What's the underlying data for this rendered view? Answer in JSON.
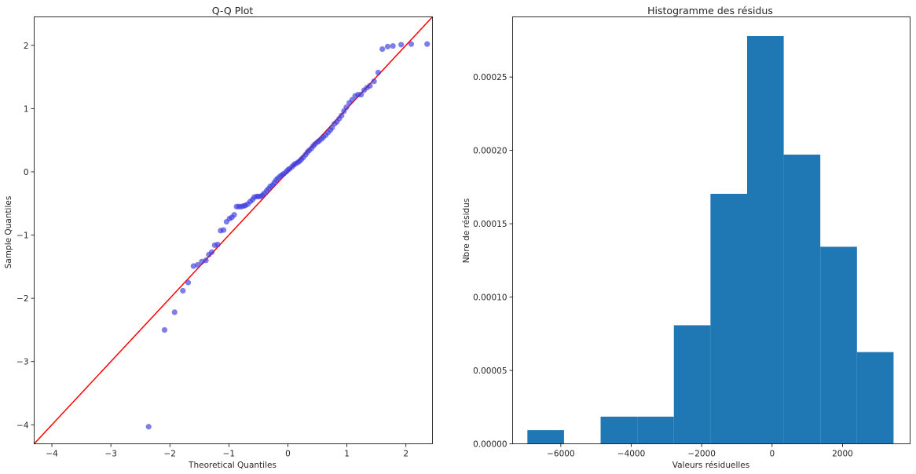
{
  "chart_data": [
    {
      "type": "scatter",
      "title": "Q-Q Plot",
      "xlabel": "Theoretical Quantiles",
      "ylabel": "Sample Quantiles",
      "xlim": [
        -4.3,
        2.45
      ],
      "ylim": [
        -4.3,
        2.45
      ],
      "xticks": [
        -4,
        -3,
        -2,
        -1,
        0,
        1,
        2
      ],
      "yticks": [
        -4,
        -3,
        -2,
        -1,
        0,
        1,
        2
      ],
      "grid": false,
      "reference_line": {
        "x": [
          -4.3,
          2.45
        ],
        "y": [
          -4.3,
          2.45
        ],
        "color": "#ff0000"
      },
      "point_color": "#3939e0",
      "series": [
        {
          "x": [
            -2.36,
            -2.09,
            -1.92,
            -1.78,
            -1.69,
            -1.6,
            -1.53,
            -1.46,
            -1.39,
            -1.34,
            -1.29,
            -1.24,
            -1.19,
            -1.14,
            -1.09,
            -1.04,
            -0.99,
            -0.95,
            -0.91,
            -0.87,
            -0.83,
            -0.79,
            -0.75,
            -0.72,
            -0.68,
            -0.64,
            -0.6,
            -0.57,
            -0.53,
            -0.5,
            -0.46,
            -0.43,
            -0.4,
            -0.36,
            -0.33,
            -0.3,
            -0.26,
            -0.23,
            -0.2,
            -0.17,
            -0.13,
            -0.1,
            -0.07,
            -0.03,
            0.0,
            0.03,
            0.07,
            0.1,
            0.13,
            0.17,
            0.2,
            0.23,
            0.26,
            0.3,
            0.33,
            0.36,
            0.4,
            0.43,
            0.46,
            0.5,
            0.53,
            0.57,
            0.6,
            0.64,
            0.68,
            0.72,
            0.75,
            0.79,
            0.83,
            0.87,
            0.91,
            0.95,
            0.99,
            1.04,
            1.09,
            1.14,
            1.19,
            1.24,
            1.29,
            1.34,
            1.39,
            1.46,
            1.53,
            1.6,
            1.69,
            1.78,
            1.92,
            2.09,
            2.36
          ],
          "y": [
            -4.03,
            -2.5,
            -2.22,
            -1.88,
            -1.75,
            -1.49,
            -1.47,
            -1.42,
            -1.4,
            -1.31,
            -1.27,
            -1.16,
            -1.15,
            -0.93,
            -0.92,
            -0.79,
            -0.74,
            -0.72,
            -0.68,
            -0.55,
            -0.55,
            -0.55,
            -0.54,
            -0.53,
            -0.51,
            -0.47,
            -0.44,
            -0.4,
            -0.39,
            -0.39,
            -0.39,
            -0.37,
            -0.34,
            -0.3,
            -0.27,
            -0.23,
            -0.21,
            -0.17,
            -0.13,
            -0.1,
            -0.07,
            -0.05,
            -0.03,
            0.0,
            0.03,
            0.05,
            0.08,
            0.11,
            0.13,
            0.15,
            0.17,
            0.2,
            0.23,
            0.27,
            0.31,
            0.34,
            0.37,
            0.41,
            0.44,
            0.47,
            0.49,
            0.52,
            0.55,
            0.58,
            0.62,
            0.66,
            0.7,
            0.76,
            0.79,
            0.84,
            0.89,
            0.96,
            1.02,
            1.09,
            1.14,
            1.2,
            1.22,
            1.22,
            1.29,
            1.33,
            1.36,
            1.43,
            1.57,
            1.94,
            1.98,
            1.99,
            2.01,
            2.02,
            2.02
          ]
        }
      ]
    },
    {
      "type": "bar",
      "title": "Histogramme des résidus",
      "xlabel": "Valeurs résiduelles",
      "ylabel": "Nbre de résidus",
      "xlim": [
        -7370,
        3920
      ],
      "ylim": [
        0,
        0.000291
      ],
      "xticks": [
        -6000,
        -4000,
        -2000,
        0,
        2000
      ],
      "xtick_labels": [
        "−6000",
        "−4000",
        "−2000",
        "0",
        "2000"
      ],
      "yticks": [
        0,
        5e-05,
        0.0001,
        0.00015,
        0.0002,
        0.00025
      ],
      "ytick_labels": [
        "0.00000",
        "0.00005",
        "0.00010",
        "0.00015",
        "0.00020",
        "0.00025"
      ],
      "grid": false,
      "bar_color": "#1f77b4",
      "bin_edges": [
        -6950,
        -5910,
        -4870,
        -3830,
        -2790,
        -1750,
        -710,
        330,
        1370,
        2410,
        3450
      ],
      "values": [
        9.3e-06,
        0.0,
        1.85e-05,
        1.85e-05,
        8.08e-05,
        0.0001704,
        0.0002779,
        0.0001971,
        0.0001343,
        6.25e-05
      ]
    }
  ]
}
